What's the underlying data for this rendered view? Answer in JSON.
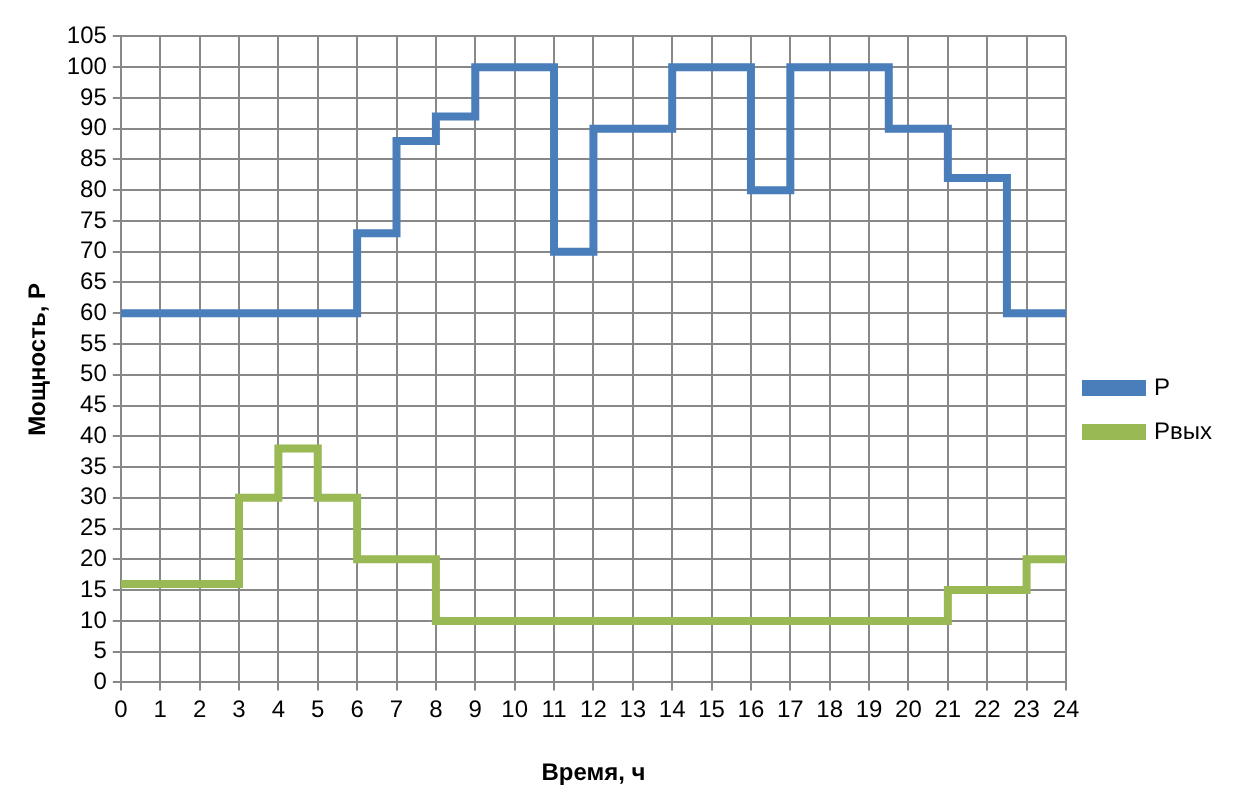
{
  "chart_data": {
    "type": "step",
    "xlabel": "Время, ч",
    "ylabel": "Мощность, P",
    "xlim": [
      0,
      24
    ],
    "xticks": [
      0,
      1,
      2,
      3,
      4,
      5,
      6,
      7,
      8,
      9,
      10,
      11,
      12,
      13,
      14,
      15,
      16,
      17,
      18,
      19,
      20,
      21,
      22,
      23,
      24
    ],
    "ylim": [
      0,
      105
    ],
    "yticks": [
      0,
      5,
      10,
      15,
      20,
      25,
      30,
      35,
      40,
      45,
      50,
      55,
      60,
      65,
      70,
      75,
      80,
      85,
      90,
      95,
      100,
      105
    ],
    "grid": true,
    "legend": "right",
    "marker": "none",
    "series": [
      {
        "name": "P",
        "color": "#4a7ebb",
        "x": [
          0,
          6,
          7,
          8,
          9,
          11,
          12,
          14,
          16,
          17,
          19.5,
          21,
          22.5,
          24
        ],
        "values": [
          60,
          73,
          88,
          92,
          100,
          70,
          90,
          100,
          80,
          100,
          90,
          82,
          60,
          60
        ]
      },
      {
        "name": "Pвых",
        "color": "#98b954",
        "x": [
          0,
          3,
          4,
          5,
          6,
          8,
          21,
          23,
          24
        ],
        "values": [
          16,
          30,
          38,
          30,
          20,
          10,
          15,
          20,
          20
        ]
      }
    ]
  }
}
